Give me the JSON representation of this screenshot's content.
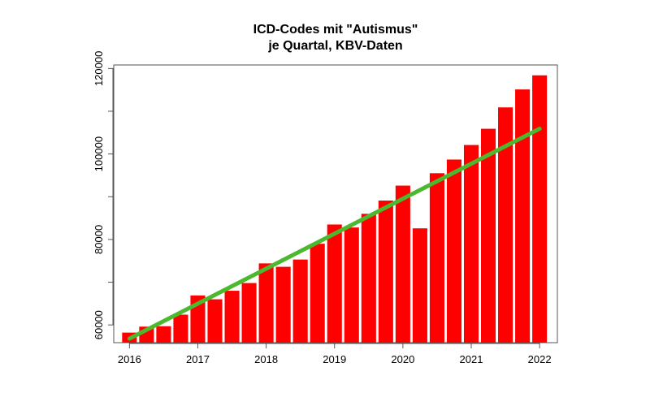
{
  "chart_data": {
    "type": "bar",
    "title": [
      "ICD-Codes mit \"Autismus\"",
      "je Quartal, KBV-Daten"
    ],
    "xlabel": "",
    "ylabel": "",
    "x": [
      2016,
      2016.25,
      2016.5,
      2016.75,
      2017,
      2017.25,
      2017.5,
      2017.75,
      2018,
      2018.25,
      2018.5,
      2018.75,
      2019,
      2019.25,
      2019.5,
      2019.75,
      2020,
      2020.25,
      2020.5,
      2020.75,
      2021,
      2021.25,
      2021.5,
      2021.75,
      2022
    ],
    "values": [
      58200,
      59600,
      59700,
      62400,
      66900,
      66000,
      68000,
      69800,
      74400,
      73600,
      75300,
      79000,
      83500,
      82800,
      86000,
      89100,
      92600,
      82600,
      95500,
      98700,
      102100,
      105900,
      110900,
      115100,
      118400
    ],
    "bar_color": "#ff0000",
    "trend": {
      "x": [
        2016,
        2022
      ],
      "y": [
        56800,
        105900
      ],
      "color": "#4cb82e"
    },
    "xticks": [
      2016,
      2017,
      2018,
      2019,
      2020,
      2021,
      2022
    ],
    "yticks": [
      60000,
      80000,
      100000,
      120000
    ],
    "xlim": [
      2015.77,
      2022.26
    ],
    "ylim": [
      55850,
      120830
    ]
  }
}
